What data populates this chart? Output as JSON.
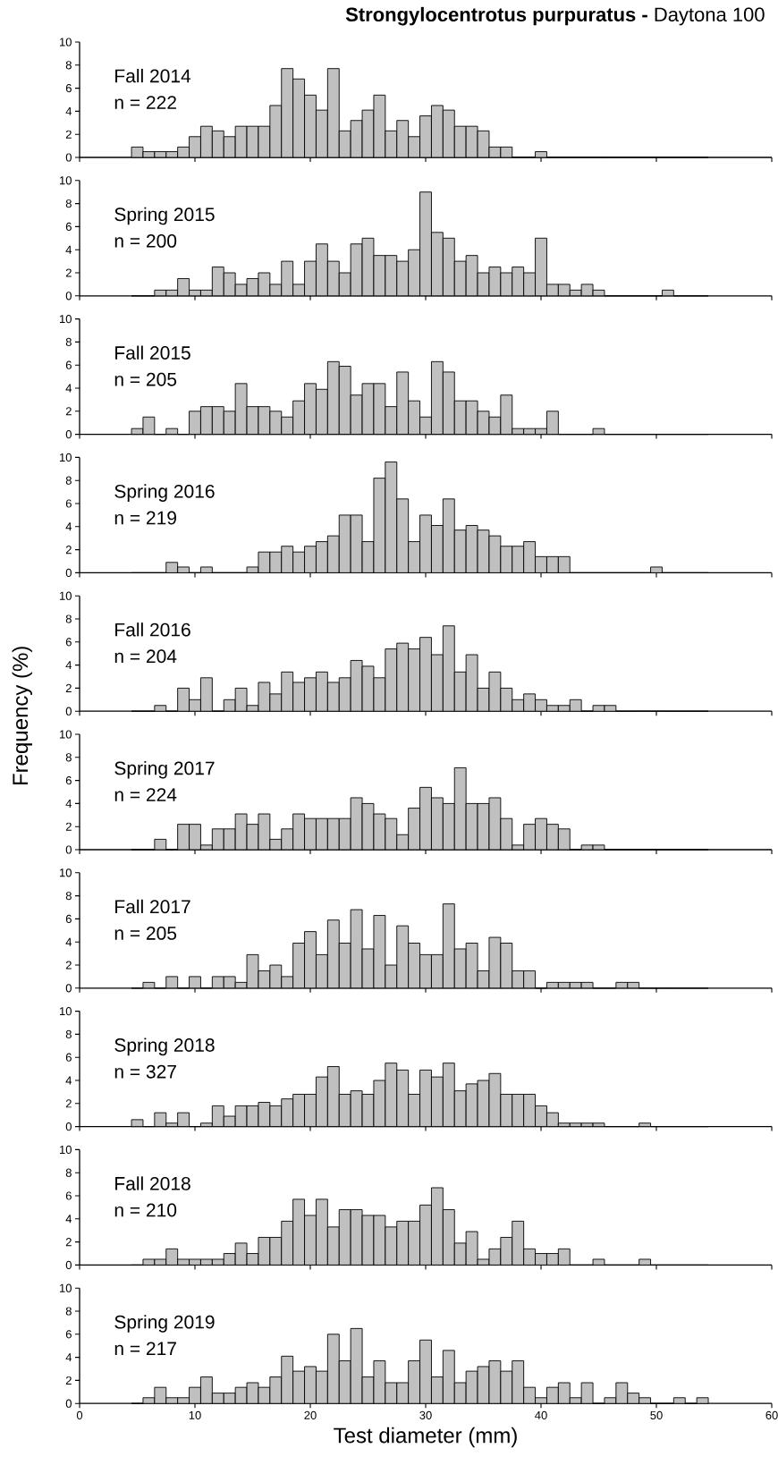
{
  "chart_data": [
    {
      "type": "histogram",
      "title": "**Strongylocentrotus purpuratus -** Daytona 100",
      "annotations": [
        "Fall 2014",
        "n = 222"
      ],
      "color": "#c0c0c0",
      "tick_labels": "y",
      "xlim": [
        0,
        60
      ],
      "ylim": [
        0,
        10
      ],
      "xticks": [
        0,
        10,
        20,
        30,
        40,
        50,
        60
      ],
      "yticks": [
        0,
        2,
        4,
        6,
        8,
        10
      ],
      "bins": [
        4.5,
        5.5,
        6.5,
        7.5,
        8.5,
        9.5,
        10.5,
        11.5,
        12.5,
        13.5,
        14.5,
        15.5,
        16.5,
        17.5,
        18.5,
        19.5,
        20.5,
        21.5,
        22.5,
        23.5,
        24.5,
        25.5,
        26.5,
        27.5,
        28.5,
        29.5,
        30.5,
        31.5,
        32.5,
        33.5,
        34.5,
        35.5,
        36.5,
        37.5,
        38.5,
        39.5,
        40.5,
        41.5,
        42.5,
        43.5,
        44.5,
        45.5,
        46.5,
        47.5,
        48.5,
        49.5,
        50.5,
        51.5,
        52.5,
        53.5,
        54.5
      ],
      "values": [
        0.9,
        0.5,
        0.5,
        0.5,
        0.9,
        1.8,
        2.7,
        2.3,
        1.8,
        2.7,
        2.7,
        2.7,
        4.5,
        7.7,
        6.8,
        5.4,
        4.1,
        7.7,
        2.3,
        3.2,
        4.1,
        5.4,
        2.3,
        3.2,
        1.8,
        3.6,
        4.5,
        4.1,
        2.7,
        2.7,
        2.3,
        0.9,
        0.9,
        0,
        0,
        0.5,
        0,
        0,
        0,
        0,
        0,
        0,
        0,
        0,
        0,
        0,
        0,
        0,
        0,
        0
      ]
    },
    {
      "type": "histogram",
      "annotations": [
        "Spring 2015",
        "n = 200"
      ],
      "color": "#c0c0c0",
      "tick_labels": "y",
      "xlim": [
        0,
        60
      ],
      "ylim": [
        0,
        10
      ],
      "xticks": [
        0,
        10,
        20,
        30,
        40,
        50,
        60
      ],
      "yticks": [
        0,
        2,
        4,
        6,
        8,
        10
      ],
      "bins": [
        4.5,
        5.5,
        6.5,
        7.5,
        8.5,
        9.5,
        10.5,
        11.5,
        12.5,
        13.5,
        14.5,
        15.5,
        16.5,
        17.5,
        18.5,
        19.5,
        20.5,
        21.5,
        22.5,
        23.5,
        24.5,
        25.5,
        26.5,
        27.5,
        28.5,
        29.5,
        30.5,
        31.5,
        32.5,
        33.5,
        34.5,
        35.5,
        36.5,
        37.5,
        38.5,
        39.5,
        40.5,
        41.5,
        42.5,
        43.5,
        44.5,
        45.5,
        46.5,
        47.5,
        48.5,
        49.5,
        50.5,
        51.5,
        52.5,
        53.5,
        54.5
      ],
      "values": [
        0,
        0,
        0.5,
        0.5,
        1.5,
        0.5,
        0.5,
        2.5,
        2,
        1,
        1.5,
        2,
        1,
        3,
        1,
        3,
        4.5,
        3,
        2,
        4.5,
        5,
        3.5,
        3.5,
        3,
        4,
        9,
        5.5,
        5,
        3,
        3.5,
        2,
        2.5,
        2,
        2.5,
        2,
        5,
        1,
        1,
        0.5,
        1,
        0.5,
        0,
        0,
        0,
        0,
        0,
        0.5,
        0,
        0,
        0
      ]
    },
    {
      "type": "histogram",
      "annotations": [
        "Fall 2015",
        "n = 205"
      ],
      "color": "#c0c0c0",
      "tick_labels": "y",
      "xlim": [
        0,
        60
      ],
      "ylim": [
        0,
        10
      ],
      "xticks": [
        0,
        10,
        20,
        30,
        40,
        50,
        60
      ],
      "yticks": [
        0,
        2,
        4,
        6,
        8,
        10
      ],
      "bins": [
        4.5,
        5.5,
        6.5,
        7.5,
        8.5,
        9.5,
        10.5,
        11.5,
        12.5,
        13.5,
        14.5,
        15.5,
        16.5,
        17.5,
        18.5,
        19.5,
        20.5,
        21.5,
        22.5,
        23.5,
        24.5,
        25.5,
        26.5,
        27.5,
        28.5,
        29.5,
        30.5,
        31.5,
        32.5,
        33.5,
        34.5,
        35.5,
        36.5,
        37.5,
        38.5,
        39.5,
        40.5,
        41.5,
        42.5,
        43.5,
        44.5,
        45.5,
        46.5,
        47.5,
        48.5,
        49.5,
        50.5,
        51.5,
        52.5,
        53.5,
        54.5
      ],
      "values": [
        0.5,
        1.5,
        0,
        0.5,
        0,
        2,
        2.4,
        2.4,
        2,
        4.4,
        2.4,
        2.4,
        2,
        1.5,
        2.9,
        4.4,
        3.9,
        6.3,
        5.9,
        3.4,
        4.4,
        4.4,
        2.4,
        5.4,
        2.9,
        1.5,
        6.3,
        5.4,
        2.9,
        2.9,
        2,
        1.5,
        3.4,
        0.5,
        0.5,
        0.5,
        2,
        0,
        0,
        0,
        0.5,
        0,
        0,
        0,
        0,
        0,
        0,
        0,
        0,
        0
      ]
    },
    {
      "type": "histogram",
      "annotations": [
        "Spring 2016",
        "n = 219"
      ],
      "color": "#c0c0c0",
      "tick_labels": "y",
      "xlim": [
        0,
        60
      ],
      "ylim": [
        0,
        10
      ],
      "xticks": [
        0,
        10,
        20,
        30,
        40,
        50,
        60
      ],
      "yticks": [
        0,
        2,
        4,
        6,
        8,
        10
      ],
      "bins": [
        4.5,
        5.5,
        6.5,
        7.5,
        8.5,
        9.5,
        10.5,
        11.5,
        12.5,
        13.5,
        14.5,
        15.5,
        16.5,
        17.5,
        18.5,
        19.5,
        20.5,
        21.5,
        22.5,
        23.5,
        24.5,
        25.5,
        26.5,
        27.5,
        28.5,
        29.5,
        30.5,
        31.5,
        32.5,
        33.5,
        34.5,
        35.5,
        36.5,
        37.5,
        38.5,
        39.5,
        40.5,
        41.5,
        42.5,
        43.5,
        44.5,
        45.5,
        46.5,
        47.5,
        48.5,
        49.5,
        50.5,
        51.5,
        52.5,
        53.5,
        54.5
      ],
      "values": [
        0,
        0,
        0,
        0.9,
        0.5,
        0,
        0.5,
        0,
        0,
        0,
        0.5,
        1.8,
        1.8,
        2.3,
        1.8,
        2.3,
        2.7,
        3.2,
        5,
        5,
        2.7,
        8.2,
        9.6,
        6.4,
        2.7,
        5,
        4.1,
        6.4,
        3.7,
        4.1,
        3.7,
        3.2,
        2.3,
        2.3,
        2.7,
        1.4,
        1.4,
        1.4,
        0,
        0,
        0,
        0,
        0,
        0,
        0,
        0.5,
        0,
        0,
        0,
        0
      ]
    },
    {
      "type": "histogram",
      "annotations": [
        "Fall 2016",
        "n = 204"
      ],
      "ylabel": "Frequency (%)",
      "color": "#c0c0c0",
      "tick_labels": "y",
      "xlim": [
        0,
        60
      ],
      "ylim": [
        0,
        10
      ],
      "xticks": [
        0,
        10,
        20,
        30,
        40,
        50,
        60
      ],
      "yticks": [
        0,
        2,
        4,
        6,
        8,
        10
      ],
      "bins": [
        4.5,
        5.5,
        6.5,
        7.5,
        8.5,
        9.5,
        10.5,
        11.5,
        12.5,
        13.5,
        14.5,
        15.5,
        16.5,
        17.5,
        18.5,
        19.5,
        20.5,
        21.5,
        22.5,
        23.5,
        24.5,
        25.5,
        26.5,
        27.5,
        28.5,
        29.5,
        30.5,
        31.5,
        32.5,
        33.5,
        34.5,
        35.5,
        36.5,
        37.5,
        38.5,
        39.5,
        40.5,
        41.5,
        42.5,
        43.5,
        44.5,
        45.5,
        46.5,
        47.5,
        48.5,
        49.5,
        50.5,
        51.5,
        52.5,
        53.5,
        54.5
      ],
      "values": [
        0,
        0,
        0.5,
        0,
        2,
        1,
        2.9,
        0,
        1,
        2,
        0.5,
        2.5,
        1.5,
        3.4,
        2.5,
        2.9,
        3.4,
        2.5,
        2.9,
        4.4,
        3.9,
        2.9,
        5.4,
        5.9,
        5.4,
        6.4,
        4.9,
        7.4,
        3.4,
        4.9,
        2,
        3.4,
        2,
        1,
        1.5,
        1,
        0.5,
        0.5,
        1,
        0,
        0.5,
        0.5,
        0,
        0,
        0,
        0,
        0,
        0,
        0,
        0
      ]
    },
    {
      "type": "histogram",
      "annotations": [
        "Spring 2017",
        "n = 224"
      ],
      "color": "#c0c0c0",
      "tick_labels": "y",
      "xlim": [
        0,
        60
      ],
      "ylim": [
        0,
        10
      ],
      "xticks": [
        0,
        10,
        20,
        30,
        40,
        50,
        60
      ],
      "yticks": [
        0,
        2,
        4,
        6,
        8,
        10
      ],
      "bins": [
        4.5,
        5.5,
        6.5,
        7.5,
        8.5,
        9.5,
        10.5,
        11.5,
        12.5,
        13.5,
        14.5,
        15.5,
        16.5,
        17.5,
        18.5,
        19.5,
        20.5,
        21.5,
        22.5,
        23.5,
        24.5,
        25.5,
        26.5,
        27.5,
        28.5,
        29.5,
        30.5,
        31.5,
        32.5,
        33.5,
        34.5,
        35.5,
        36.5,
        37.5,
        38.5,
        39.5,
        40.5,
        41.5,
        42.5,
        43.5,
        44.5,
        45.5,
        46.5,
        47.5,
        48.5,
        49.5,
        50.5,
        51.5,
        52.5,
        53.5,
        54.5
      ],
      "values": [
        0,
        0,
        0.9,
        0,
        2.2,
        2.2,
        0.4,
        1.8,
        1.8,
        3.1,
        2.2,
        3.1,
        0.9,
        1.8,
        3.1,
        2.7,
        2.7,
        2.7,
        2.7,
        4.5,
        4,
        3.1,
        2.7,
        1.3,
        3.6,
        5.4,
        4.5,
        4,
        7.1,
        4,
        4,
        4.5,
        2.7,
        0.4,
        2.2,
        2.7,
        2.2,
        1.8,
        0,
        0.4,
        0.4,
        0,
        0,
        0,
        0,
        0,
        0,
        0,
        0,
        0
      ]
    },
    {
      "type": "histogram",
      "annotations": [
        "Fall 2017",
        "n = 205"
      ],
      "color": "#c0c0c0",
      "tick_labels": "y",
      "xlim": [
        0,
        60
      ],
      "ylim": [
        0,
        10
      ],
      "xticks": [
        0,
        10,
        20,
        30,
        40,
        50,
        60
      ],
      "yticks": [
        0,
        2,
        4,
        6,
        8,
        10
      ],
      "bins": [
        4.5,
        5.5,
        6.5,
        7.5,
        8.5,
        9.5,
        10.5,
        11.5,
        12.5,
        13.5,
        14.5,
        15.5,
        16.5,
        17.5,
        18.5,
        19.5,
        20.5,
        21.5,
        22.5,
        23.5,
        24.5,
        25.5,
        26.5,
        27.5,
        28.5,
        29.5,
        30.5,
        31.5,
        32.5,
        33.5,
        34.5,
        35.5,
        36.5,
        37.5,
        38.5,
        39.5,
        40.5,
        41.5,
        42.5,
        43.5,
        44.5,
        45.5,
        46.5,
        47.5,
        48.5,
        49.5,
        50.5,
        51.5,
        52.5,
        53.5,
        54.5
      ],
      "values": [
        0,
        0.5,
        0,
        1,
        0,
        1,
        0,
        1,
        1,
        0.5,
        2.9,
        1.5,
        2,
        1,
        3.9,
        4.9,
        2.9,
        5.9,
        3.9,
        6.8,
        3.4,
        6.3,
        2,
        5.4,
        3.9,
        2.9,
        2.9,
        7.3,
        3.4,
        3.9,
        1.5,
        4.4,
        3.9,
        1.5,
        1.5,
        0,
        0.5,
        0.5,
        0.5,
        0.5,
        0,
        0,
        0.5,
        0.5,
        0,
        0,
        0,
        0,
        0,
        0
      ]
    },
    {
      "type": "histogram",
      "annotations": [
        "Spring 2018",
        "n = 327"
      ],
      "color": "#c0c0c0",
      "tick_labels": "y",
      "xlim": [
        0,
        60
      ],
      "ylim": [
        0,
        10
      ],
      "xticks": [
        0,
        10,
        20,
        30,
        40,
        50,
        60
      ],
      "yticks": [
        0,
        2,
        4,
        6,
        8,
        10
      ],
      "bins": [
        4.5,
        5.5,
        6.5,
        7.5,
        8.5,
        9.5,
        10.5,
        11.5,
        12.5,
        13.5,
        14.5,
        15.5,
        16.5,
        17.5,
        18.5,
        19.5,
        20.5,
        21.5,
        22.5,
        23.5,
        24.5,
        25.5,
        26.5,
        27.5,
        28.5,
        29.5,
        30.5,
        31.5,
        32.5,
        33.5,
        34.5,
        35.5,
        36.5,
        37.5,
        38.5,
        39.5,
        40.5,
        41.5,
        42.5,
        43.5,
        44.5,
        45.5,
        46.5,
        47.5,
        48.5,
        49.5,
        50.5,
        51.5,
        52.5,
        53.5,
        54.5
      ],
      "values": [
        0.6,
        0,
        1.2,
        0.3,
        1.2,
        0,
        0.3,
        1.8,
        0.9,
        1.8,
        1.8,
        2.1,
        1.8,
        2.4,
        2.8,
        2.8,
        4.3,
        5.2,
        2.8,
        3.1,
        2.8,
        4,
        5.5,
        4.9,
        2.8,
        4.9,
        4.3,
        5.5,
        3.1,
        3.7,
        4,
        4.6,
        2.8,
        2.8,
        2.8,
        1.8,
        1.2,
        0.3,
        0.3,
        0.3,
        0.3,
        0,
        0,
        0,
        0.3,
        0,
        0,
        0,
        0,
        0
      ]
    },
    {
      "type": "histogram",
      "annotations": [
        "Fall 2018",
        "n = 210"
      ],
      "color": "#c0c0c0",
      "tick_labels": "y",
      "xlim": [
        0,
        60
      ],
      "ylim": [
        0,
        10
      ],
      "xticks": [
        0,
        10,
        20,
        30,
        40,
        50,
        60
      ],
      "yticks": [
        0,
        2,
        4,
        6,
        8,
        10
      ],
      "bins": [
        4.5,
        5.5,
        6.5,
        7.5,
        8.5,
        9.5,
        10.5,
        11.5,
        12.5,
        13.5,
        14.5,
        15.5,
        16.5,
        17.5,
        18.5,
        19.5,
        20.5,
        21.5,
        22.5,
        23.5,
        24.5,
        25.5,
        26.5,
        27.5,
        28.5,
        29.5,
        30.5,
        31.5,
        32.5,
        33.5,
        34.5,
        35.5,
        36.5,
        37.5,
        38.5,
        39.5,
        40.5,
        41.5,
        42.5,
        43.5,
        44.5,
        45.5,
        46.5,
        47.5,
        48.5,
        49.5,
        50.5,
        51.5,
        52.5,
        53.5,
        54.5
      ],
      "values": [
        0,
        0.5,
        0.5,
        1.4,
        0.5,
        0.5,
        0.5,
        0.5,
        1,
        1.9,
        1,
        2.4,
        2.4,
        3.8,
        5.7,
        4.3,
        5.7,
        3.3,
        4.8,
        4.8,
        4.3,
        4.3,
        3.3,
        3.8,
        3.8,
        5.2,
        6.7,
        4.8,
        1.9,
        2.9,
        0.5,
        1.4,
        2.4,
        3.8,
        1.4,
        1,
        1,
        1.4,
        0,
        0,
        0.5,
        0,
        0,
        0,
        0.5,
        0,
        0,
        0,
        0,
        0
      ]
    },
    {
      "type": "histogram",
      "annotations": [
        "Spring 2019",
        "n = 217"
      ],
      "xlabel": "Test diameter (mm)",
      "color": "#c0c0c0",
      "xlim": [
        0,
        60
      ],
      "ylim": [
        0,
        10
      ],
      "xticks": [
        0,
        10,
        20,
        30,
        40,
        50,
        60
      ],
      "yticks": [
        0,
        2,
        4,
        6,
        8,
        10
      ],
      "bins": [
        4.5,
        5.5,
        6.5,
        7.5,
        8.5,
        9.5,
        10.5,
        11.5,
        12.5,
        13.5,
        14.5,
        15.5,
        16.5,
        17.5,
        18.5,
        19.5,
        20.5,
        21.5,
        22.5,
        23.5,
        24.5,
        25.5,
        26.5,
        27.5,
        28.5,
        29.5,
        30.5,
        31.5,
        32.5,
        33.5,
        34.5,
        35.5,
        36.5,
        37.5,
        38.5,
        39.5,
        40.5,
        41.5,
        42.5,
        43.5,
        44.5,
        45.5,
        46.5,
        47.5,
        48.5,
        49.5,
        50.5,
        51.5,
        52.5,
        53.5,
        54.5
      ],
      "values": [
        0,
        0.5,
        1.4,
        0.5,
        0.5,
        1.4,
        2.3,
        0.9,
        0.9,
        1.4,
        1.8,
        1.4,
        2.3,
        4.1,
        2.8,
        3.2,
        2.8,
        6,
        3.7,
        6.5,
        2.3,
        3.7,
        1.8,
        1.8,
        3.7,
        5.5,
        2.3,
        4.6,
        1.8,
        2.8,
        3.2,
        3.7,
        2.8,
        3.7,
        1.4,
        0.5,
        1.4,
        1.8,
        0.5,
        1.8,
        0,
        0.5,
        1.8,
        0.9,
        0.5,
        0,
        0,
        0.5,
        0,
        0.5
      ]
    }
  ]
}
